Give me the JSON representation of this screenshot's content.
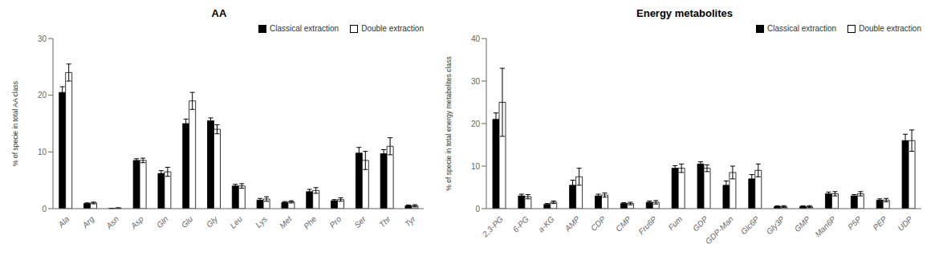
{
  "chart_data": [
    {
      "type": "bar",
      "title": "AA",
      "ylabel": "% of specie in total AA class",
      "categories": [
        "Ala",
        "Arg",
        "Asn",
        "Asp",
        "Gln",
        "Glu",
        "Gly",
        "Leu",
        "Lys",
        "Met",
        "Phe",
        "Pro",
        "Ser",
        "Thr",
        "Tyr"
      ],
      "series": [
        {
          "name": "Classical extraction",
          "color": "#000000",
          "values": [
            20.5,
            0.9,
            0.05,
            8.5,
            6.2,
            15.0,
            15.5,
            4.0,
            1.5,
            1.1,
            3.0,
            1.4,
            9.8,
            9.7,
            0.5
          ],
          "errors": [
            1.0,
            0.12,
            0.03,
            0.3,
            0.5,
            0.8,
            0.5,
            0.3,
            0.3,
            0.15,
            0.4,
            0.2,
            1.0,
            0.7,
            0.15
          ]
        },
        {
          "name": "Double extraction",
          "color": "#ffffff",
          "values": [
            24.0,
            1.0,
            0.1,
            8.5,
            6.5,
            19.0,
            14.0,
            4.0,
            1.7,
            1.2,
            3.2,
            1.6,
            8.5,
            11.0,
            0.5
          ],
          "errors": [
            1.5,
            0.15,
            0.05,
            0.4,
            0.8,
            1.5,
            0.8,
            0.4,
            0.4,
            0.2,
            0.5,
            0.3,
            1.6,
            1.5,
            0.2
          ]
        }
      ],
      "ylim": [
        0,
        30
      ],
      "yticks": [
        0,
        10,
        20,
        30
      ],
      "grid": false,
      "legend": "upper right"
    },
    {
      "type": "bar",
      "title": "Energy metabolites",
      "ylabel": "% of specie in total energy metabolites class",
      "categories": [
        "2,3-PG",
        "6-PG",
        "a-KG",
        "AMP",
        "CDP",
        "CMP",
        "Fru6P",
        "Fum",
        "GDP",
        "GDP-Man",
        "Glc6P",
        "Gly3P",
        "GMP",
        "Man6P",
        "P5P",
        "PEP",
        "UDP"
      ],
      "series": [
        {
          "name": "Classical extraction",
          "color": "#000000",
          "values": [
            21.0,
            3.0,
            1.0,
            5.5,
            3.0,
            1.2,
            1.5,
            9.5,
            10.5,
            5.5,
            7.0,
            0.5,
            0.5,
            3.5,
            3.0,
            2.0,
            16.0
          ],
          "errors": [
            1.5,
            0.4,
            0.2,
            1.2,
            0.4,
            0.2,
            0.3,
            0.6,
            0.5,
            1.0,
            1.0,
            0.15,
            0.15,
            0.4,
            0.3,
            0.3,
            1.5
          ]
        },
        {
          "name": "Double extraction",
          "color": "#ffffff",
          "values": [
            25.0,
            2.8,
            1.5,
            7.5,
            3.2,
            1.2,
            1.5,
            9.5,
            9.5,
            8.5,
            9.0,
            0.5,
            0.5,
            3.5,
            3.5,
            2.0,
            16.0
          ],
          "errors": [
            8.0,
            0.5,
            0.3,
            2.0,
            0.5,
            0.3,
            0.4,
            1.0,
            0.8,
            1.5,
            1.5,
            0.2,
            0.2,
            0.5,
            0.5,
            0.4,
            2.5
          ]
        }
      ],
      "ylim": [
        0,
        40
      ],
      "yticks": [
        0,
        10,
        20,
        30,
        40
      ],
      "grid": false,
      "legend": "upper right"
    }
  ]
}
